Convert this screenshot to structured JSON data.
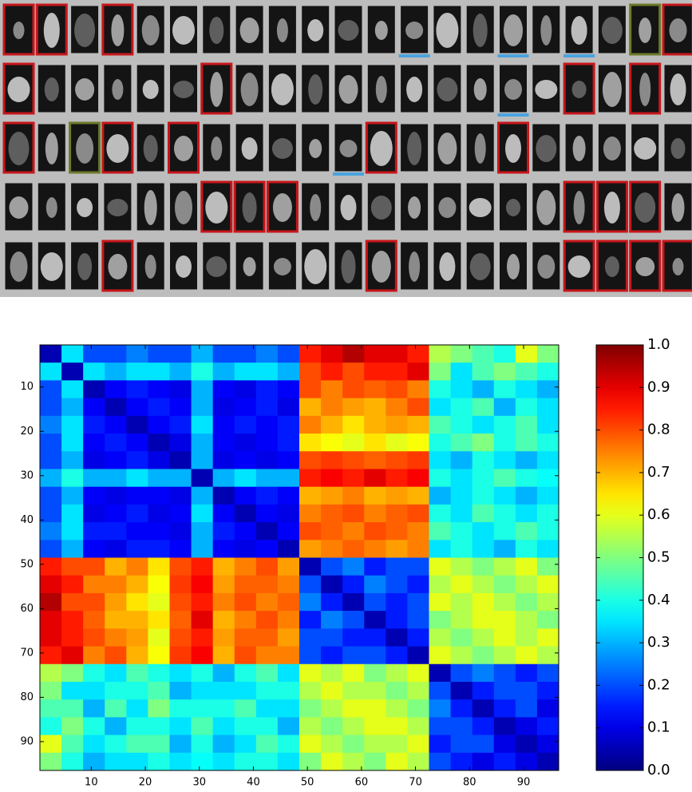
{
  "chart_data": {
    "type": "heatmap",
    "colormap": "jet",
    "xlim": [
      0.5,
      96.5
    ],
    "ylim": [
      96.5,
      0.5
    ],
    "xticks": [
      10,
      20,
      30,
      40,
      50,
      60,
      70,
      80,
      90
    ],
    "yticks": [
      10,
      20,
      30,
      40,
      50,
      60,
      70,
      80,
      90
    ],
    "clim": [
      0,
      1
    ],
    "cticks": [
      {
        "value": 0,
        "label": "0.0"
      },
      0.1,
      0.2,
      0.3,
      0.4,
      0.5,
      0.6,
      0.7,
      0.8,
      0.9,
      {
        "value": 1,
        "label": "1.0"
      }
    ],
    "values": [
      [
        0.05,
        0.35,
        0.2,
        0.2,
        0.25,
        0.2,
        0.2,
        0.3,
        0.2,
        0.2,
        0.25,
        0.2,
        0.85,
        0.9,
        0.95,
        0.9,
        0.9,
        0.85,
        0.55,
        0.5,
        0.45,
        0.4,
        0.6,
        0.5
      ],
      [
        0.35,
        0.05,
        0.35,
        0.3,
        0.35,
        0.35,
        0.3,
        0.4,
        0.3,
        0.35,
        0.35,
        0.3,
        0.8,
        0.85,
        0.8,
        0.85,
        0.85,
        0.9,
        0.5,
        0.35,
        0.45,
        0.5,
        0.45,
        0.4
      ],
      [
        0.2,
        0.35,
        0.05,
        0.12,
        0.15,
        0.12,
        0.1,
        0.3,
        0.12,
        0.1,
        0.15,
        0.12,
        0.8,
        0.75,
        0.8,
        0.78,
        0.8,
        0.75,
        0.4,
        0.35,
        0.3,
        0.4,
        0.35,
        0.3
      ],
      [
        0.2,
        0.3,
        0.12,
        0.05,
        0.12,
        0.15,
        0.12,
        0.3,
        0.1,
        0.12,
        0.15,
        0.1,
        0.7,
        0.75,
        0.72,
        0.7,
        0.75,
        0.8,
        0.35,
        0.4,
        0.45,
        0.3,
        0.4,
        0.35
      ],
      [
        0.25,
        0.35,
        0.15,
        0.12,
        0.05,
        0.12,
        0.15,
        0.35,
        0.12,
        0.15,
        0.12,
        0.15,
        0.75,
        0.7,
        0.65,
        0.7,
        0.72,
        0.7,
        0.45,
        0.4,
        0.35,
        0.4,
        0.45,
        0.35
      ],
      [
        0.2,
        0.35,
        0.12,
        0.15,
        0.12,
        0.05,
        0.1,
        0.3,
        0.12,
        0.1,
        0.12,
        0.15,
        0.65,
        0.62,
        0.6,
        0.65,
        0.6,
        0.62,
        0.4,
        0.45,
        0.5,
        0.4,
        0.45,
        0.4
      ],
      [
        0.2,
        0.3,
        0.1,
        0.12,
        0.15,
        0.1,
        0.05,
        0.3,
        0.1,
        0.12,
        0.1,
        0.12,
        0.8,
        0.82,
        0.8,
        0.78,
        0.8,
        0.82,
        0.35,
        0.3,
        0.4,
        0.35,
        0.3,
        0.35
      ],
      [
        0.3,
        0.4,
        0.3,
        0.3,
        0.35,
        0.3,
        0.3,
        0.05,
        0.3,
        0.35,
        0.3,
        0.3,
        0.85,
        0.88,
        0.85,
        0.9,
        0.85,
        0.88,
        0.4,
        0.35,
        0.4,
        0.45,
        0.4,
        0.38
      ],
      [
        0.2,
        0.3,
        0.12,
        0.1,
        0.12,
        0.12,
        0.1,
        0.3,
        0.05,
        0.12,
        0.15,
        0.12,
        0.7,
        0.72,
        0.75,
        0.7,
        0.72,
        0.7,
        0.3,
        0.35,
        0.4,
        0.35,
        0.3,
        0.35
      ],
      [
        0.2,
        0.35,
        0.1,
        0.12,
        0.15,
        0.1,
        0.12,
        0.35,
        0.12,
        0.05,
        0.12,
        0.1,
        0.75,
        0.78,
        0.8,
        0.75,
        0.78,
        0.8,
        0.4,
        0.35,
        0.45,
        0.4,
        0.35,
        0.4
      ],
      [
        0.25,
        0.35,
        0.15,
        0.15,
        0.12,
        0.12,
        0.1,
        0.3,
        0.15,
        0.12,
        0.05,
        0.12,
        0.8,
        0.78,
        0.75,
        0.8,
        0.78,
        0.75,
        0.45,
        0.4,
        0.35,
        0.4,
        0.45,
        0.4
      ],
      [
        0.2,
        0.3,
        0.12,
        0.1,
        0.15,
        0.15,
        0.12,
        0.3,
        0.12,
        0.1,
        0.12,
        0.05,
        0.72,
        0.75,
        0.78,
        0.75,
        0.72,
        0.75,
        0.35,
        0.4,
        0.35,
        0.3,
        0.4,
        0.35
      ],
      [
        0.85,
        0.8,
        0.8,
        0.7,
        0.75,
        0.65,
        0.8,
        0.85,
        0.7,
        0.75,
        0.8,
        0.72,
        0.05,
        0.2,
        0.25,
        0.15,
        0.2,
        0.2,
        0.6,
        0.55,
        0.5,
        0.55,
        0.6,
        0.5
      ],
      [
        0.9,
        0.85,
        0.75,
        0.75,
        0.7,
        0.62,
        0.82,
        0.88,
        0.72,
        0.78,
        0.78,
        0.75,
        0.2,
        0.05,
        0.15,
        0.25,
        0.2,
        0.15,
        0.55,
        0.6,
        0.55,
        0.5,
        0.55,
        0.6
      ],
      [
        0.95,
        0.8,
        0.8,
        0.72,
        0.65,
        0.6,
        0.8,
        0.85,
        0.75,
        0.8,
        0.75,
        0.78,
        0.25,
        0.15,
        0.05,
        0.2,
        0.15,
        0.2,
        0.6,
        0.55,
        0.6,
        0.55,
        0.5,
        0.55
      ],
      [
        0.9,
        0.85,
        0.78,
        0.7,
        0.7,
        0.65,
        0.78,
        0.9,
        0.7,
        0.75,
        0.8,
        0.75,
        0.15,
        0.25,
        0.2,
        0.05,
        0.15,
        0.2,
        0.5,
        0.55,
        0.6,
        0.6,
        0.55,
        0.5
      ],
      [
        0.9,
        0.85,
        0.8,
        0.75,
        0.72,
        0.6,
        0.8,
        0.85,
        0.72,
        0.78,
        0.78,
        0.72,
        0.2,
        0.2,
        0.15,
        0.15,
        0.05,
        0.15,
        0.55,
        0.5,
        0.55,
        0.6,
        0.55,
        0.6
      ],
      [
        0.85,
        0.9,
        0.75,
        0.8,
        0.7,
        0.62,
        0.82,
        0.88,
        0.7,
        0.8,
        0.75,
        0.75,
        0.2,
        0.15,
        0.2,
        0.2,
        0.15,
        0.05,
        0.6,
        0.55,
        0.5,
        0.55,
        0.6,
        0.55
      ],
      [
        0.55,
        0.5,
        0.4,
        0.35,
        0.45,
        0.4,
        0.35,
        0.4,
        0.3,
        0.4,
        0.45,
        0.35,
        0.6,
        0.55,
        0.6,
        0.5,
        0.55,
        0.6,
        0.05,
        0.2,
        0.25,
        0.2,
        0.15,
        0.2
      ],
      [
        0.5,
        0.35,
        0.35,
        0.4,
        0.4,
        0.45,
        0.3,
        0.35,
        0.35,
        0.35,
        0.4,
        0.4,
        0.55,
        0.6,
        0.55,
        0.55,
        0.5,
        0.55,
        0.2,
        0.05,
        0.15,
        0.2,
        0.2,
        0.15
      ],
      [
        0.45,
        0.45,
        0.3,
        0.45,
        0.35,
        0.5,
        0.4,
        0.4,
        0.4,
        0.45,
        0.35,
        0.35,
        0.5,
        0.55,
        0.6,
        0.6,
        0.55,
        0.5,
        0.25,
        0.15,
        0.05,
        0.15,
        0.2,
        0.1
      ],
      [
        0.4,
        0.5,
        0.4,
        0.3,
        0.4,
        0.4,
        0.35,
        0.45,
        0.35,
        0.4,
        0.4,
        0.3,
        0.55,
        0.5,
        0.55,
        0.6,
        0.6,
        0.55,
        0.2,
        0.2,
        0.15,
        0.05,
        0.1,
        0.15
      ],
      [
        0.6,
        0.45,
        0.35,
        0.4,
        0.45,
        0.45,
        0.3,
        0.4,
        0.3,
        0.35,
        0.45,
        0.4,
        0.6,
        0.55,
        0.5,
        0.55,
        0.55,
        0.6,
        0.15,
        0.2,
        0.2,
        0.1,
        0.05,
        0.1
      ],
      [
        0.5,
        0.4,
        0.3,
        0.35,
        0.35,
        0.4,
        0.35,
        0.38,
        0.35,
        0.4,
        0.4,
        0.35,
        0.5,
        0.6,
        0.55,
        0.5,
        0.6,
        0.55,
        0.2,
        0.15,
        0.1,
        0.15,
        0.1,
        0.05
      ]
    ]
  }
}
